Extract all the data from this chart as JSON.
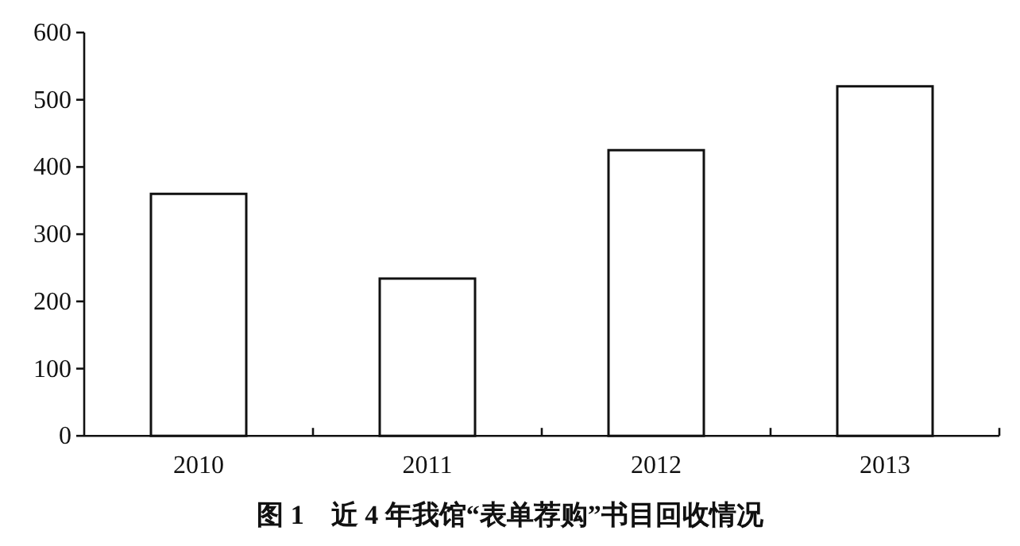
{
  "chart_data": {
    "type": "bar",
    "title": "图 1　近 4 年我馆“表单荐购”书目回收情况",
    "categories": [
      "2010",
      "2011",
      "2012",
      "2013"
    ],
    "values": [
      360,
      234,
      425,
      520
    ],
    "color": "#ffffff",
    "ylim": [
      0,
      600
    ],
    "yticks": [
      0,
      100,
      200,
      300,
      400,
      500,
      600
    ],
    "grid": false,
    "legend": false
  }
}
